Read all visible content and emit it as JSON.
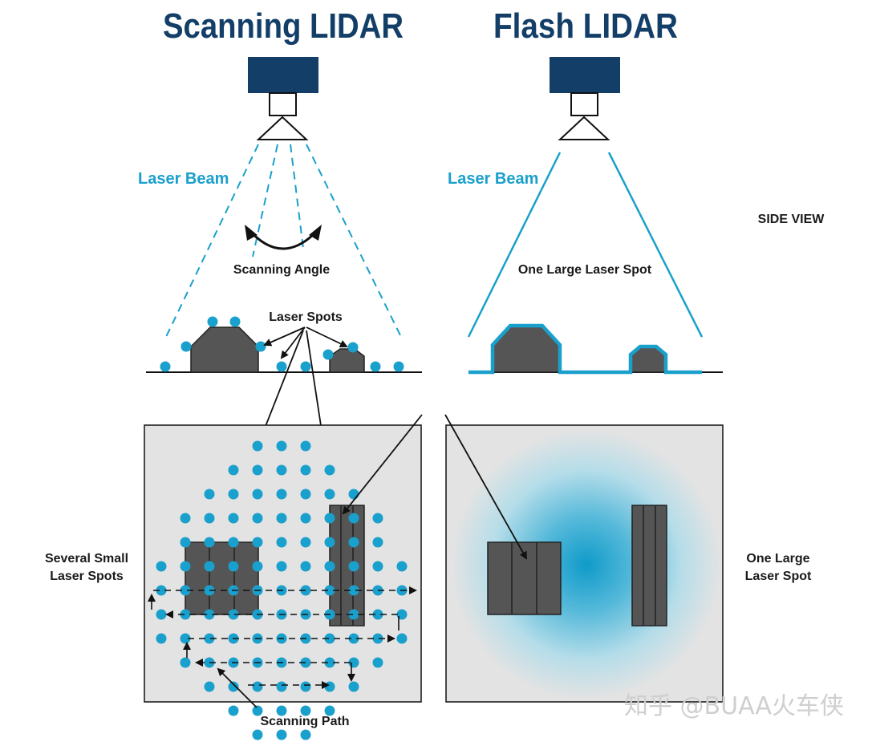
{
  "titles": {
    "left": "Scanning LIDAR",
    "right": "Flash LIDAR"
  },
  "labels": {
    "laser_beam_left": "Laser Beam",
    "laser_beam_right": "Laser Beam",
    "scanning_angle": "Scanning Angle",
    "laser_spots": "Laser Spots",
    "one_large_spot_top": "One Large Laser Spot",
    "side_view": "SIDE VIEW",
    "several_small_1": "Several Small",
    "several_small_2": "Laser Spots",
    "one_large_1": "One Large",
    "one_large_2": "Laser Spot",
    "scanning_path": "Scanning Path"
  },
  "watermark": "知乎 @BUAA火车侠",
  "colors": {
    "navy": "#133e68",
    "cyan": "#1aa0cc",
    "object_gray": "#555555",
    "panel_gray": "#e3e3e3"
  },
  "grid_rows": [
    {
      "count": 3
    },
    {
      "count": 5
    },
    {
      "count": 7
    },
    {
      "count": 9
    },
    {
      "count": 9
    },
    {
      "count": 11
    },
    {
      "count": 11
    },
    {
      "count": 11
    },
    {
      "count": 11
    },
    {
      "count": 9
    },
    {
      "count": 7
    },
    {
      "count": 5
    },
    {
      "count": 3
    }
  ]
}
